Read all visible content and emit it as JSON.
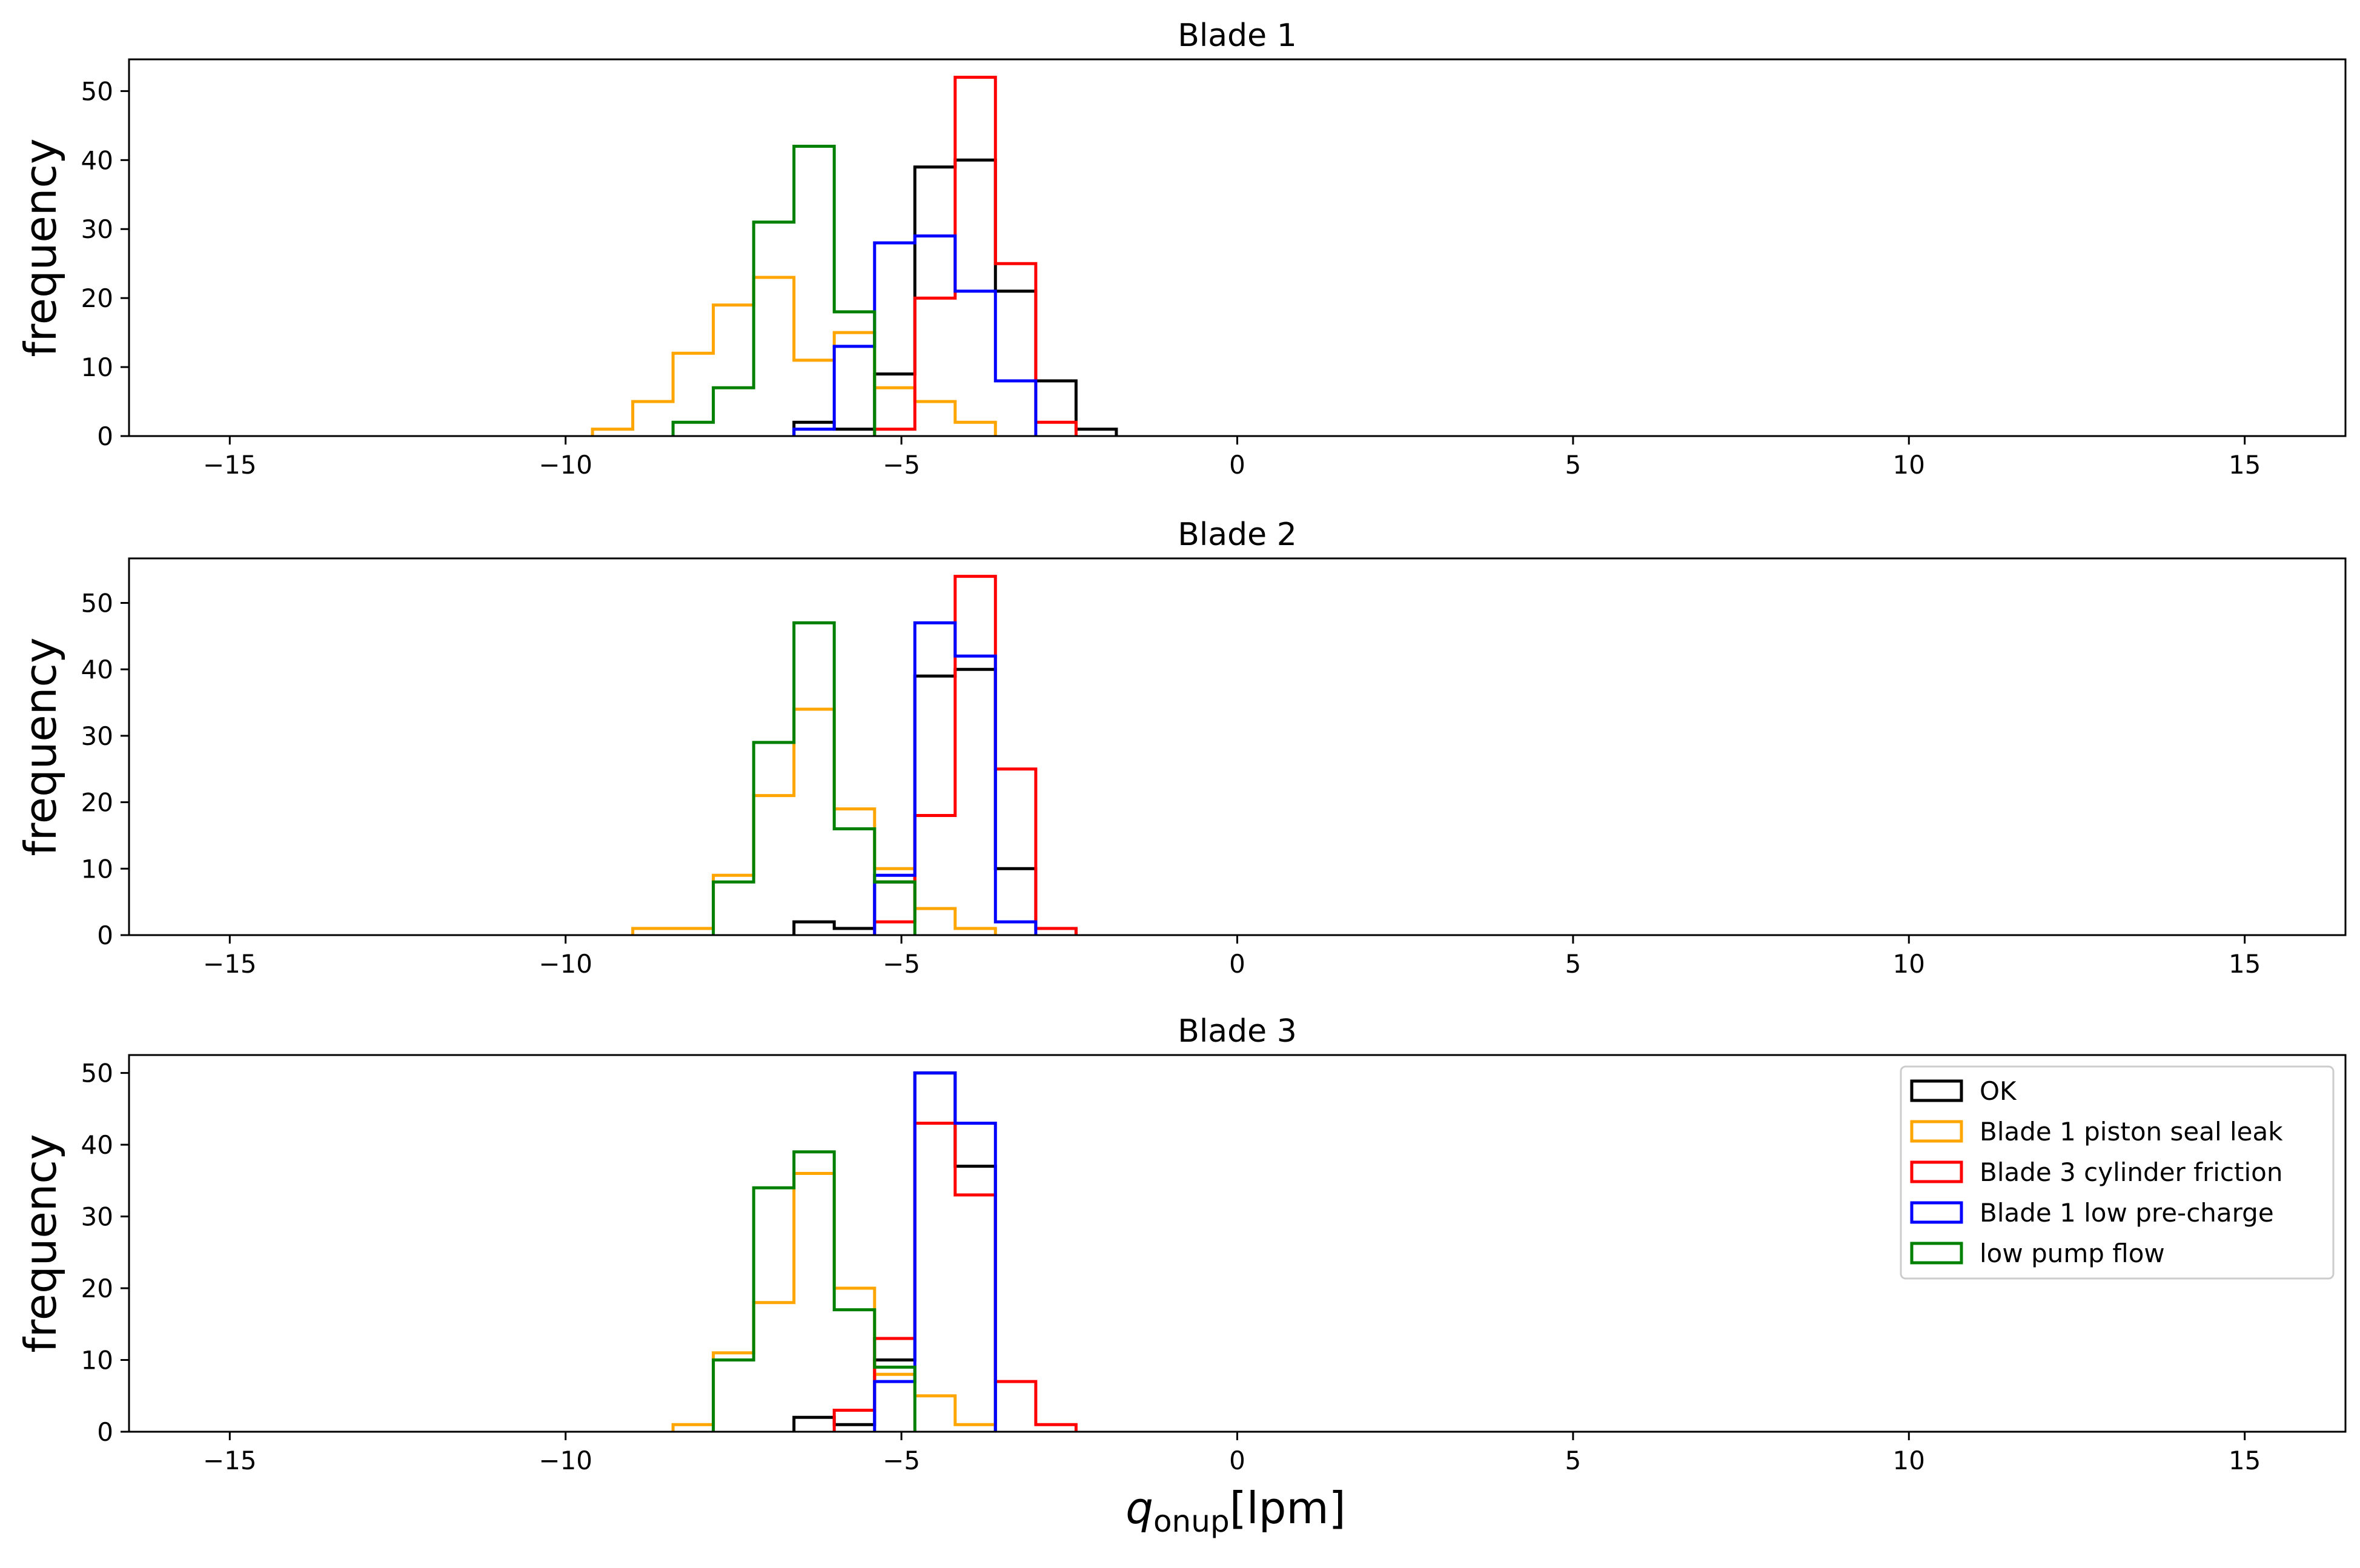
{
  "chart_data": [
    {
      "type": "histogram",
      "title": "Blade 1",
      "xlabel": "",
      "ylabel": "frequency",
      "xlim": [
        -16.5,
        16.5
      ],
      "ylim": [
        0,
        54.6
      ],
      "xticks": [
        -15,
        -10,
        -5,
        0,
        5,
        10,
        15
      ],
      "xtick_labels": [
        "−15",
        "−10",
        "−5",
        "0",
        "5",
        "10",
        "15"
      ],
      "yticks": [
        0,
        10,
        20,
        30,
        40,
        50
      ],
      "ytick_labels": [
        "0",
        "10",
        "20",
        "30",
        "40",
        "50"
      ],
      "legend": false,
      "series": [
        {
          "name": "OK",
          "color": "#000000",
          "x_start": -6.6,
          "bin_width": 0.6,
          "counts": [
            2,
            1,
            9,
            39,
            40,
            21,
            8,
            1
          ]
        },
        {
          "name": "Blade 1 piston seal leak",
          "color": "#ffa500",
          "x_start": -9.6,
          "bin_width": 0.6,
          "counts": [
            1,
            5,
            12,
            19,
            23,
            11,
            15,
            7,
            5,
            2
          ]
        },
        {
          "name": "Blade 3 cylinder friction",
          "color": "#ff0000",
          "x_start": -5.4,
          "bin_width": 0.6,
          "counts": [
            1,
            20,
            52,
            25,
            2
          ]
        },
        {
          "name": "Blade 1 low pre-charge",
          "color": "#0000ff",
          "x_start": -6.6,
          "bin_width": 0.6,
          "counts": [
            1,
            13,
            28,
            29,
            21,
            8
          ]
        },
        {
          "name": "low pump flow",
          "color": "#008000",
          "x_start": -8.4,
          "bin_width": 0.6,
          "counts": [
            2,
            7,
            31,
            42,
            18
          ]
        }
      ]
    },
    {
      "type": "histogram",
      "title": "Blade 2",
      "xlabel": "",
      "ylabel": "frequency",
      "xlim": [
        -16.5,
        16.5
      ],
      "ylim": [
        0,
        56.7
      ],
      "xticks": [
        -15,
        -10,
        -5,
        0,
        5,
        10,
        15
      ],
      "xtick_labels": [
        "−15",
        "−10",
        "−5",
        "0",
        "5",
        "10",
        "15"
      ],
      "yticks": [
        0,
        10,
        20,
        30,
        40,
        50
      ],
      "ytick_labels": [
        "0",
        "10",
        "20",
        "30",
        "40",
        "50"
      ],
      "legend": false,
      "series": [
        {
          "name": "OK",
          "color": "#000000",
          "x_start": -6.6,
          "bin_width": 0.6,
          "counts": [
            2,
            1,
            8,
            39,
            40,
            10,
            1
          ]
        },
        {
          "name": "Blade 1 piston seal leak",
          "color": "#ffa500",
          "x_start": -9.0,
          "bin_width": 0.6,
          "counts": [
            1,
            1,
            9,
            21,
            34,
            19,
            10,
            4,
            1
          ]
        },
        {
          "name": "Blade 3 cylinder friction",
          "color": "#ff0000",
          "x_start": -5.4,
          "bin_width": 0.6,
          "counts": [
            2,
            18,
            54,
            25,
            1
          ]
        },
        {
          "name": "Blade 1 low pre-charge",
          "color": "#0000ff",
          "x_start": -5.4,
          "bin_width": 0.6,
          "counts": [
            9,
            47,
            42,
            2
          ]
        },
        {
          "name": "low pump flow",
          "color": "#008000",
          "x_start": -7.8,
          "bin_width": 0.6,
          "counts": [
            8,
            29,
            47,
            16,
            8
          ]
        }
      ]
    },
    {
      "type": "histogram",
      "title": "Blade 3",
      "xlabel": "q_onup [lpm]",
      "ylabel": "frequency",
      "xlim": [
        -16.5,
        16.5
      ],
      "ylim": [
        0,
        52.5
      ],
      "xticks": [
        -15,
        -10,
        -5,
        0,
        5,
        10,
        15
      ],
      "xtick_labels": [
        "−15",
        "−10",
        "−5",
        "0",
        "5",
        "10",
        "15"
      ],
      "yticks": [
        0,
        10,
        20,
        30,
        40,
        50
      ],
      "ytick_labels": [
        "0",
        "10",
        "20",
        "30",
        "40",
        "50"
      ],
      "legend": "upper right",
      "series": [
        {
          "name": "OK",
          "color": "#000000",
          "x_start": -6.6,
          "bin_width": 0.6,
          "counts": [
            2,
            1,
            10,
            50,
            37
          ]
        },
        {
          "name": "Blade 1 piston seal leak",
          "color": "#ffa500",
          "x_start": -8.4,
          "bin_width": 0.6,
          "counts": [
            1,
            11,
            18,
            36,
            20,
            8,
            5,
            1
          ]
        },
        {
          "name": "Blade 3 cylinder friction",
          "color": "#ff0000",
          "x_start": -6.0,
          "bin_width": 0.6,
          "counts": [
            3,
            13,
            43,
            33,
            7,
            1
          ]
        },
        {
          "name": "Blade 1 low pre-charge",
          "color": "#0000ff",
          "x_start": -5.4,
          "bin_width": 0.6,
          "counts": [
            7,
            50,
            43
          ]
        },
        {
          "name": "low pump flow",
          "color": "#008000",
          "x_start": -7.8,
          "bin_width": 0.6,
          "counts": [
            10,
            34,
            39,
            17,
            9
          ]
        }
      ]
    }
  ],
  "figure": {
    "xlabel_main": "q",
    "xlabel_sub": "onup",
    "xlabel_unit": "[lpm]"
  },
  "legend": {
    "entries": [
      "OK",
      "Blade 1 piston seal leak",
      "Blade 3 cylinder friction",
      "Blade 1 low pre-charge",
      "low pump flow"
    ]
  }
}
